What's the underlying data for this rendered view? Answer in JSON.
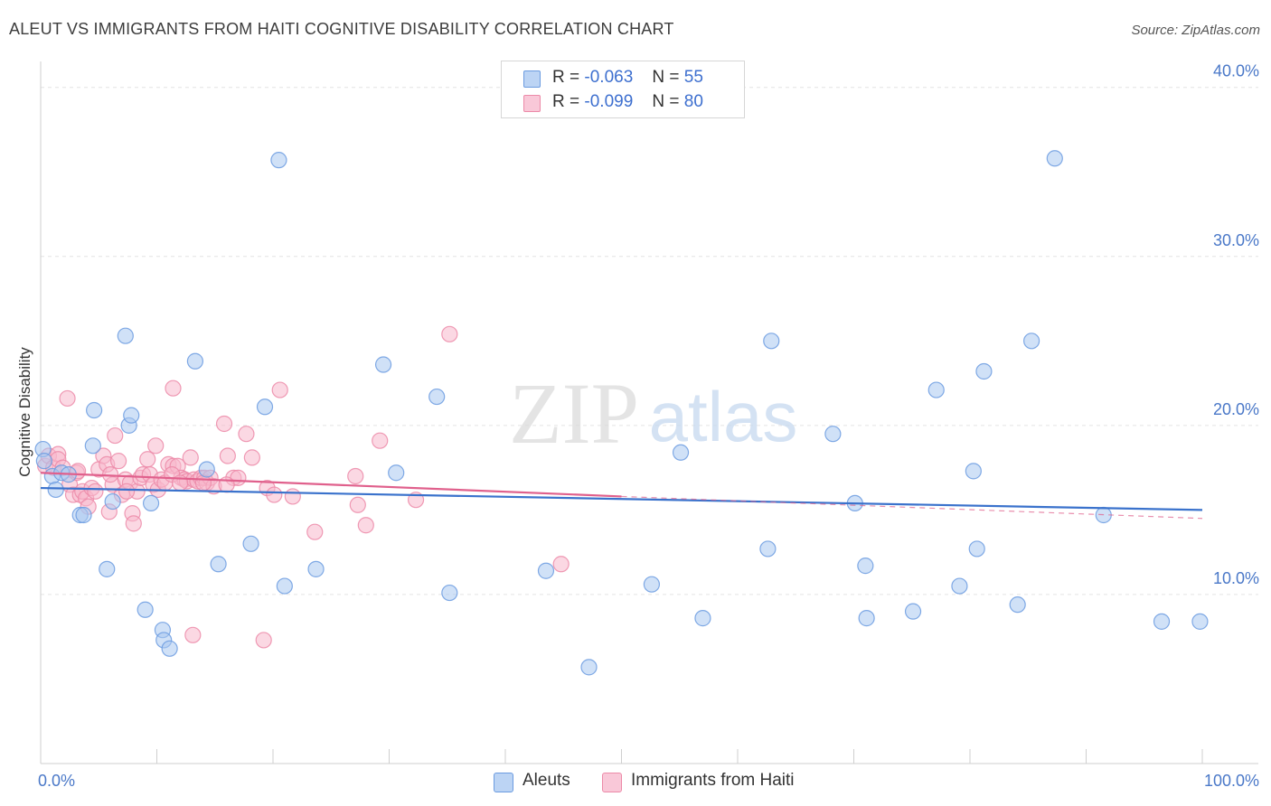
{
  "header": {
    "title": "ALEUT VS IMMIGRANTS FROM HAITI COGNITIVE DISABILITY CORRELATION CHART",
    "source": "Source: ZipAtlas.com"
  },
  "stats": [
    {
      "r_label": "R =",
      "r_value": "-0.063",
      "n_label": "N =",
      "n_value": "55"
    },
    {
      "r_label": "R =",
      "r_value": "-0.099",
      "n_label": "N =",
      "n_value": "80"
    }
  ],
  "watermark": {
    "zip": "ZIP",
    "atlas": "atlas"
  },
  "colors": {
    "aleut_fill": "#a9c8f0",
    "aleut_stroke": "#6b9be0",
    "aleut_line": "#3a72cc",
    "haiti_fill": "#f7b8cc",
    "haiti_stroke": "#ec8aa8",
    "haiti_line": "#e0608c",
    "tick": "#4a78c8",
    "grid": "#e3e3e3"
  },
  "chart_data": {
    "type": "scatter",
    "title": "ALEUT VS IMMIGRANTS FROM HAITI COGNITIVE DISABILITY CORRELATION CHART",
    "xlabel": "",
    "ylabel": "Cognitive Disability",
    "xlim": [
      0,
      100
    ],
    "ylim": [
      0,
      41
    ],
    "x_tick_labels": [
      "0.0%",
      "100.0%"
    ],
    "y_ticks": [
      10,
      20,
      30,
      40
    ],
    "y_tick_labels": [
      "10.0%",
      "20.0%",
      "30.0%",
      "40.0%"
    ],
    "grid": "horizontal dashed",
    "legend_position": "bottom-center",
    "series": [
      {
        "name": "Aleuts",
        "trend": {
          "x": [
            0,
            100
          ],
          "y": [
            16.3,
            15.0
          ]
        },
        "points": [
          [
            0.2,
            18.6
          ],
          [
            1.0,
            17.0
          ],
          [
            1.3,
            16.2
          ],
          [
            1.8,
            17.2
          ],
          [
            2.4,
            17.1
          ],
          [
            3.4,
            14.7
          ],
          [
            3.7,
            14.7
          ],
          [
            4.5,
            18.8
          ],
          [
            4.6,
            20.9
          ],
          [
            5.7,
            11.5
          ],
          [
            6.2,
            15.5
          ],
          [
            7.3,
            25.3
          ],
          [
            7.6,
            20.0
          ],
          [
            7.8,
            20.6
          ],
          [
            9.0,
            9.1
          ],
          [
            9.5,
            15.4
          ],
          [
            10.5,
            7.9
          ],
          [
            10.6,
            7.3
          ],
          [
            11.1,
            6.8
          ],
          [
            13.3,
            23.8
          ],
          [
            14.3,
            17.4
          ],
          [
            15.3,
            11.8
          ],
          [
            18.1,
            13.0
          ],
          [
            19.3,
            21.1
          ],
          [
            20.5,
            35.7
          ],
          [
            21.0,
            10.5
          ],
          [
            23.7,
            11.5
          ],
          [
            29.5,
            23.6
          ],
          [
            30.6,
            17.2
          ],
          [
            34.1,
            21.7
          ],
          [
            35.2,
            10.1
          ],
          [
            43.5,
            11.4
          ],
          [
            47.2,
            5.7
          ],
          [
            52.6,
            10.6
          ],
          [
            55.1,
            18.4
          ],
          [
            57.0,
            8.6
          ],
          [
            62.6,
            12.7
          ],
          [
            62.9,
            25.0
          ],
          [
            68.2,
            19.5
          ],
          [
            70.1,
            15.4
          ],
          [
            71.0,
            11.7
          ],
          [
            71.1,
            8.6
          ],
          [
            75.1,
            9.0
          ],
          [
            77.1,
            22.1
          ],
          [
            79.1,
            10.5
          ],
          [
            80.3,
            17.3
          ],
          [
            80.6,
            12.7
          ],
          [
            81.2,
            23.2
          ],
          [
            84.1,
            9.4
          ],
          [
            85.3,
            25.0
          ],
          [
            87.3,
            35.8
          ],
          [
            91.5,
            14.7
          ],
          [
            96.5,
            8.4
          ],
          [
            99.8,
            8.4
          ],
          [
            0.3,
            17.9
          ]
        ]
      },
      {
        "name": "Immigrants from Haiti",
        "trend": {
          "x": [
            0,
            50
          ],
          "y": [
            17.2,
            15.8
          ]
        },
        "trend_dashed": {
          "x": [
            50,
            100
          ],
          "y": [
            15.8,
            14.5
          ]
        },
        "points": [
          [
            0.4,
            17.6
          ],
          [
            0.7,
            18.2
          ],
          [
            1.1,
            17.5
          ],
          [
            1.5,
            18.3
          ],
          [
            1.5,
            18.0
          ],
          [
            1.9,
            17.5
          ],
          [
            2.5,
            16.5
          ],
          [
            2.8,
            15.9
          ],
          [
            3.1,
            17.2
          ],
          [
            3.4,
            15.9
          ],
          [
            3.6,
            16.1
          ],
          [
            3.9,
            15.7
          ],
          [
            4.1,
            15.2
          ],
          [
            4.4,
            16.3
          ],
          [
            4.7,
            16.1
          ],
          [
            5.0,
            17.4
          ],
          [
            5.4,
            18.2
          ],
          [
            5.7,
            17.7
          ],
          [
            5.9,
            14.9
          ],
          [
            6.2,
            16.5
          ],
          [
            6.4,
            19.4
          ],
          [
            6.7,
            17.9
          ],
          [
            7.0,
            15.9
          ],
          [
            7.3,
            16.8
          ],
          [
            7.7,
            16.6
          ],
          [
            7.9,
            14.8
          ],
          [
            8.0,
            14.2
          ],
          [
            8.3,
            16.1
          ],
          [
            8.6,
            16.9
          ],
          [
            8.8,
            17.1
          ],
          [
            9.2,
            18.0
          ],
          [
            9.4,
            17.1
          ],
          [
            9.7,
            16.5
          ],
          [
            10.1,
            16.2
          ],
          [
            10.4,
            16.8
          ],
          [
            10.7,
            16.6
          ],
          [
            11.0,
            17.7
          ],
          [
            11.4,
            17.6
          ],
          [
            11.8,
            17.6
          ],
          [
            12.1,
            16.9
          ],
          [
            12.4,
            16.8
          ],
          [
            12.6,
            16.7
          ],
          [
            12.9,
            18.1
          ],
          [
            13.2,
            16.8
          ],
          [
            13.5,
            16.7
          ],
          [
            13.8,
            16.9
          ],
          [
            14.1,
            16.9
          ],
          [
            14.3,
            16.6
          ],
          [
            14.6,
            16.9
          ],
          [
            14.9,
            16.4
          ],
          [
            11.3,
            17.1
          ],
          [
            15.8,
            20.1
          ],
          [
            16.1,
            18.2
          ],
          [
            16.6,
            16.9
          ],
          [
            17.0,
            16.9
          ],
          [
            17.7,
            19.5
          ],
          [
            18.2,
            18.1
          ],
          [
            19.5,
            16.3
          ],
          [
            20.1,
            15.9
          ],
          [
            20.6,
            22.1
          ],
          [
            21.7,
            15.8
          ],
          [
            23.6,
            13.7
          ],
          [
            27.1,
            17.0
          ],
          [
            27.3,
            15.3
          ],
          [
            28.0,
            14.1
          ],
          [
            29.2,
            19.1
          ],
          [
            32.3,
            15.6
          ],
          [
            35.2,
            25.4
          ],
          [
            44.8,
            11.8
          ],
          [
            13.1,
            7.6
          ],
          [
            19.2,
            7.3
          ],
          [
            2.3,
            21.6
          ],
          [
            11.4,
            22.2
          ],
          [
            7.4,
            16.1
          ],
          [
            9.9,
            18.8
          ],
          [
            12.0,
            16.6
          ],
          [
            3.2,
            17.3
          ],
          [
            6.0,
            17.1
          ],
          [
            14.0,
            16.6
          ],
          [
            16.0,
            16.5
          ]
        ]
      }
    ]
  },
  "legend": [
    {
      "label": "Aleuts"
    },
    {
      "label": "Immigrants from Haiti"
    }
  ]
}
